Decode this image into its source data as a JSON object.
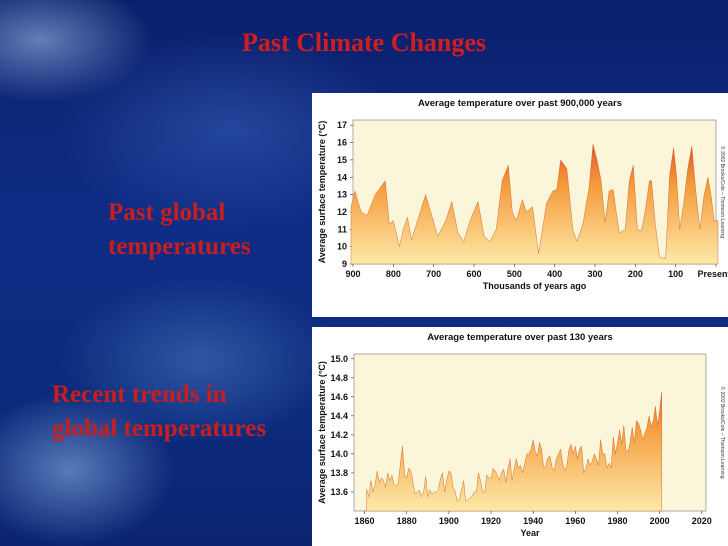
{
  "slide": {
    "title": "Past Climate Changes",
    "label_past": [
      "Past global",
      "temperatures"
    ],
    "label_recent": [
      "Recent trends in",
      "global temperatures"
    ]
  },
  "colors": {
    "title": "#d21d1d",
    "label": "#c81e1e",
    "fill_top": "#e0281c",
    "fill_mid": "#f59b3c",
    "fill_bottom": "#fde9a8",
    "plot_bg": "#fbf6d9"
  },
  "chart_data": [
    {
      "type": "area",
      "title": "Average temperature over past 900,000 years",
      "xlabel": "Thousands of years ago",
      "ylabel": "Average surface temperature (°C)",
      "credit": "© 2002 Brooks/Cole – Thomson Learning",
      "x_tick_labels": [
        "900",
        "800",
        "700",
        "600",
        "500",
        "400",
        "300",
        "200",
        "100",
        "Present"
      ],
      "x_ticks": [
        900,
        800,
        700,
        600,
        500,
        400,
        300,
        200,
        100,
        0
      ],
      "xlim": [
        900,
        0
      ],
      "y_ticks": [
        9,
        10,
        11,
        12,
        13,
        14,
        15,
        16,
        17
      ],
      "ylim": [
        9,
        17.3
      ],
      "x": [
        905,
        895,
        880,
        865,
        845,
        820,
        810,
        800,
        785,
        775,
        765,
        755,
        740,
        720,
        705,
        690,
        670,
        655,
        640,
        625,
        610,
        590,
        575,
        560,
        545,
        530,
        515,
        505,
        495,
        480,
        470,
        455,
        440,
        420,
        405,
        395,
        385,
        370,
        355,
        345,
        330,
        315,
        305,
        295,
        285,
        275,
        265,
        255,
        240,
        225,
        215,
        205,
        195,
        185,
        175,
        165,
        160,
        150,
        140,
        125,
        115,
        105,
        98,
        90,
        80,
        70,
        60,
        50,
        40,
        30,
        20,
        12,
        5,
        -5
      ],
      "y": [
        12.3,
        13.2,
        12.0,
        11.8,
        13.0,
        13.8,
        11.3,
        11.5,
        10.0,
        11.0,
        11.7,
        10.4,
        11.5,
        13.0,
        11.8,
        10.6,
        11.5,
        12.6,
        10.8,
        10.3,
        11.5,
        12.6,
        10.6,
        10.3,
        11.0,
        13.8,
        14.7,
        12.0,
        11.5,
        12.7,
        12.0,
        12.3,
        9.6,
        12.5,
        13.2,
        13.3,
        15.0,
        14.5,
        11.0,
        10.3,
        11.3,
        13.4,
        15.9,
        15.0,
        13.8,
        11.4,
        13.2,
        13.3,
        10.8,
        11.0,
        13.8,
        14.7,
        11.0,
        10.9,
        12.1,
        13.8,
        13.8,
        11.2,
        9.4,
        9.3,
        14.1,
        15.7,
        14.1,
        11.0,
        12.5,
        14.5,
        15.8,
        13.2,
        11.0,
        12.9,
        14.0,
        12.9,
        11.5,
        11.5
      ]
    },
    {
      "type": "area",
      "title": "Average temperature over past 130 years",
      "xlabel": "Year",
      "ylabel": "Average surface temperature (°C)",
      "credit": "© 2002 Brooks/Cole – Thomson Learning",
      "x_ticks": [
        1860,
        1880,
        1900,
        1920,
        1940,
        1960,
        1980,
        2000,
        2020
      ],
      "y_ticks": [
        13.6,
        13.8,
        14.0,
        14.2,
        14.4,
        14.6,
        14.8,
        15.0
      ],
      "xlim": [
        1855,
        2022
      ],
      "ylim": [
        13.4,
        15.05
      ],
      "years_start": 1861,
      "values": [
        13.63,
        13.55,
        13.72,
        13.6,
        13.68,
        13.82,
        13.7,
        13.75,
        13.72,
        13.65,
        13.8,
        13.72,
        13.78,
        13.68,
        13.66,
        13.7,
        13.9,
        14.08,
        13.78,
        13.75,
        13.85,
        13.82,
        13.7,
        13.58,
        13.6,
        13.62,
        13.55,
        13.6,
        13.76,
        13.55,
        13.62,
        13.58,
        13.6,
        13.6,
        13.62,
        13.74,
        13.8,
        13.6,
        13.72,
        13.82,
        13.8,
        13.65,
        13.6,
        13.5,
        13.52,
        13.62,
        13.72,
        13.5,
        13.52,
        13.54,
        13.55,
        13.6,
        13.6,
        13.8,
        13.72,
        13.6,
        13.6,
        13.78,
        13.75,
        13.74,
        13.85,
        13.82,
        13.78,
        13.72,
        13.8,
        13.84,
        13.7,
        13.84,
        13.95,
        13.72,
        13.85,
        13.95,
        13.85,
        13.88,
        13.8,
        13.9,
        14.0,
        14.0,
        14.05,
        14.15,
        14.02,
        13.98,
        14.12,
        14.05,
        13.85,
        13.88,
        13.96,
        13.98,
        13.86,
        13.82,
        13.95,
        14.0,
        14.05,
        13.9,
        13.82,
        13.88,
        14.05,
        14.1,
        14.0,
        14.08,
        13.95,
        14.05,
        14.08,
        13.8,
        13.85,
        13.95,
        13.88,
        13.92,
        14.0,
        13.95,
        13.88,
        14.15,
        14.0,
        14.0,
        13.85,
        13.9,
        13.85,
        14.18,
        14.0,
        14.12,
        14.25,
        14.1,
        14.3,
        14.05,
        14.02,
        14.12,
        14.28,
        14.12,
        14.35,
        14.32,
        14.25,
        14.15,
        14.22,
        14.28,
        14.4,
        14.28,
        14.35,
        14.5,
        14.3,
        14.45,
        14.65
      ]
    }
  ]
}
